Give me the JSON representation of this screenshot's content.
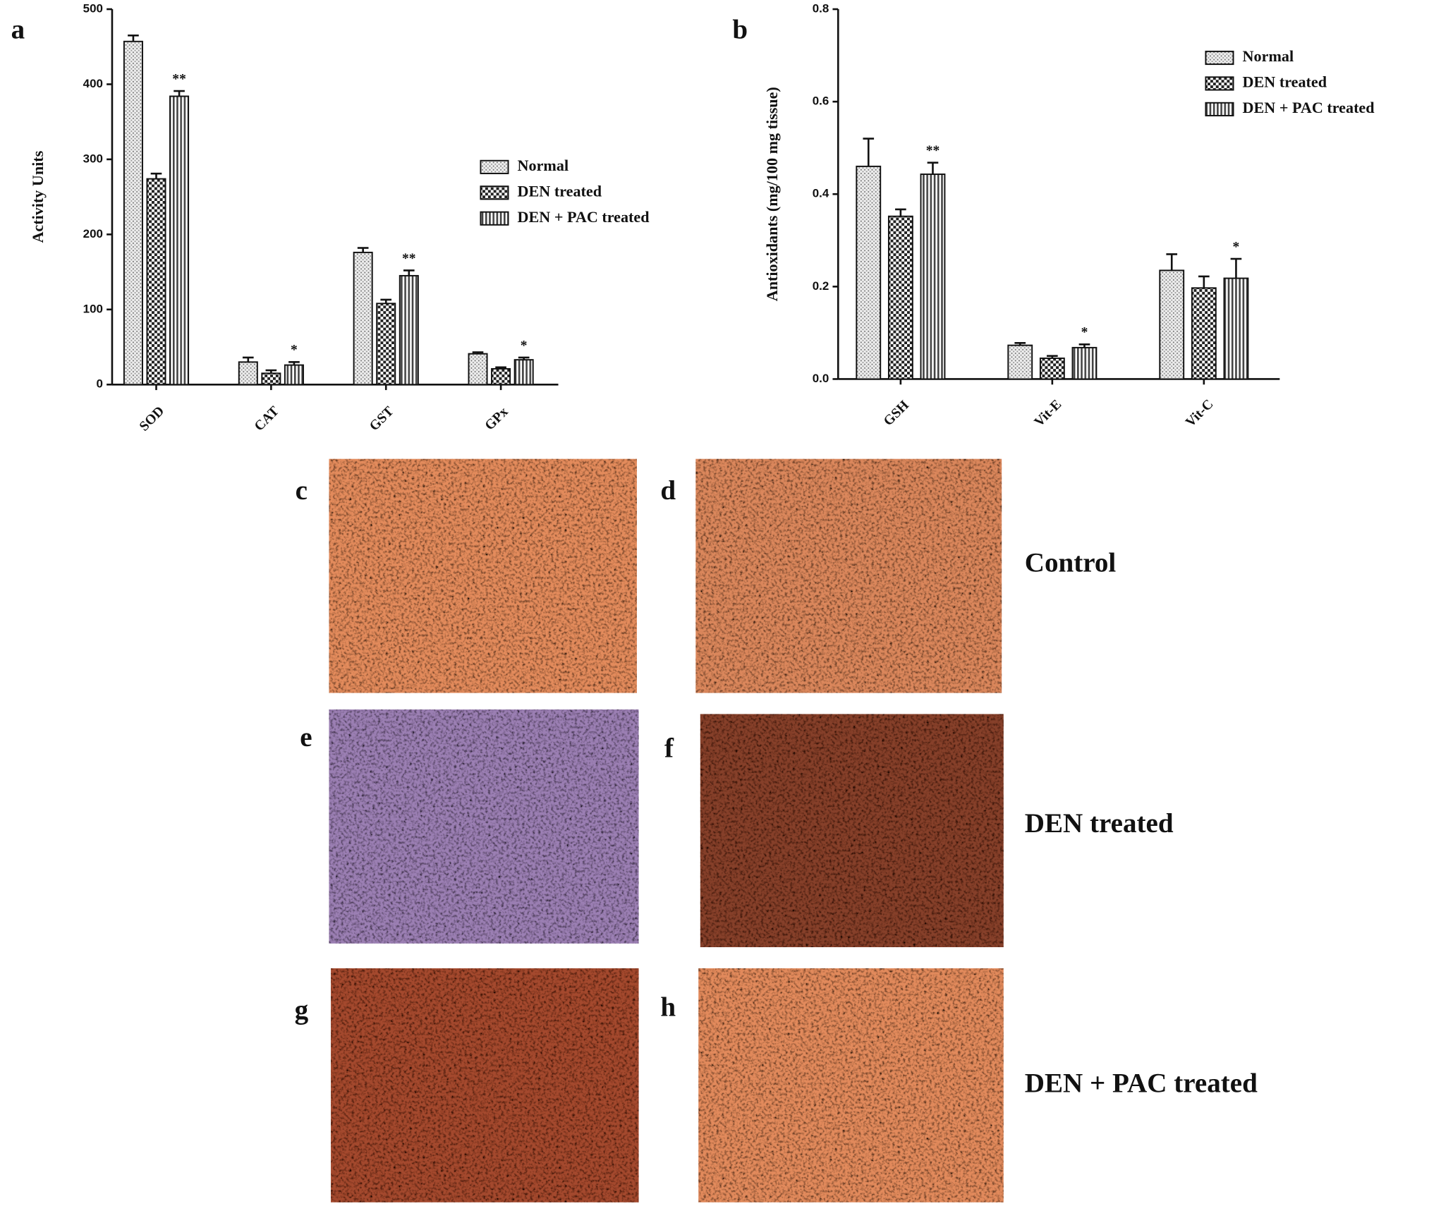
{
  "chart_data": [
    {
      "type": "bar",
      "panel_label": "a",
      "y_label": "Activity Units",
      "categories": [
        "SOD",
        "CAT",
        "GST",
        "GPx"
      ],
      "ylim": [
        0,
        500
      ],
      "yticks": [
        0,
        100,
        200,
        300,
        400,
        500
      ],
      "series": [
        {
          "name": "Normal",
          "color": "#e6e6e6",
          "pattern": "dots",
          "values": [
            457,
            30,
            176,
            41
          ],
          "errors": [
            8,
            6,
            6,
            2
          ]
        },
        {
          "name": "DEN treated",
          "color": "#222222",
          "pattern": "checks",
          "values": [
            274,
            15,
            108,
            21
          ],
          "errors": [
            7,
            4,
            5,
            2
          ]
        },
        {
          "name": "DEN + PAC treated",
          "color": "#444444",
          "pattern": "stripes",
          "values": [
            384,
            26,
            145,
            33
          ],
          "errors": [
            7,
            4,
            7,
            3
          ],
          "significance": [
            "**",
            "*",
            "**",
            "*"
          ]
        }
      ]
    },
    {
      "type": "bar",
      "panel_label": "b",
      "y_label": "Antioxidants (mg/100 mg tissue)",
      "categories": [
        "GSH",
        "Vit-E",
        "Vit-C"
      ],
      "ylim": [
        0,
        0.8
      ],
      "yticks": [
        {
          "value": 0,
          "label": "0.0"
        },
        0.2,
        0.4,
        0.6,
        0.8
      ],
      "series": [
        {
          "name": "Normal",
          "color": "#e6e6e6",
          "pattern": "dots",
          "values": [
            0.46,
            0.073,
            0.235
          ],
          "errors": [
            0.06,
            0.005,
            0.035
          ]
        },
        {
          "name": "DEN treated",
          "color": "#222222",
          "pattern": "checks",
          "values": [
            0.352,
            0.045,
            0.197
          ],
          "errors": [
            0.015,
            0.005,
            0.025
          ]
        },
        {
          "name": "DEN + PAC treated",
          "color": "#444444",
          "pattern": "stripes",
          "values": [
            0.443,
            0.068,
            0.218
          ],
          "errors": [
            0.025,
            0.007,
            0.042
          ],
          "significance": [
            "**",
            "*",
            "*"
          ]
        }
      ]
    }
  ],
  "micrographs": {
    "panel_labels": [
      "c",
      "d",
      "e",
      "f",
      "g",
      "h"
    ],
    "groups": [
      "Control",
      "DEN treated",
      "DEN + PAC treated"
    ]
  }
}
